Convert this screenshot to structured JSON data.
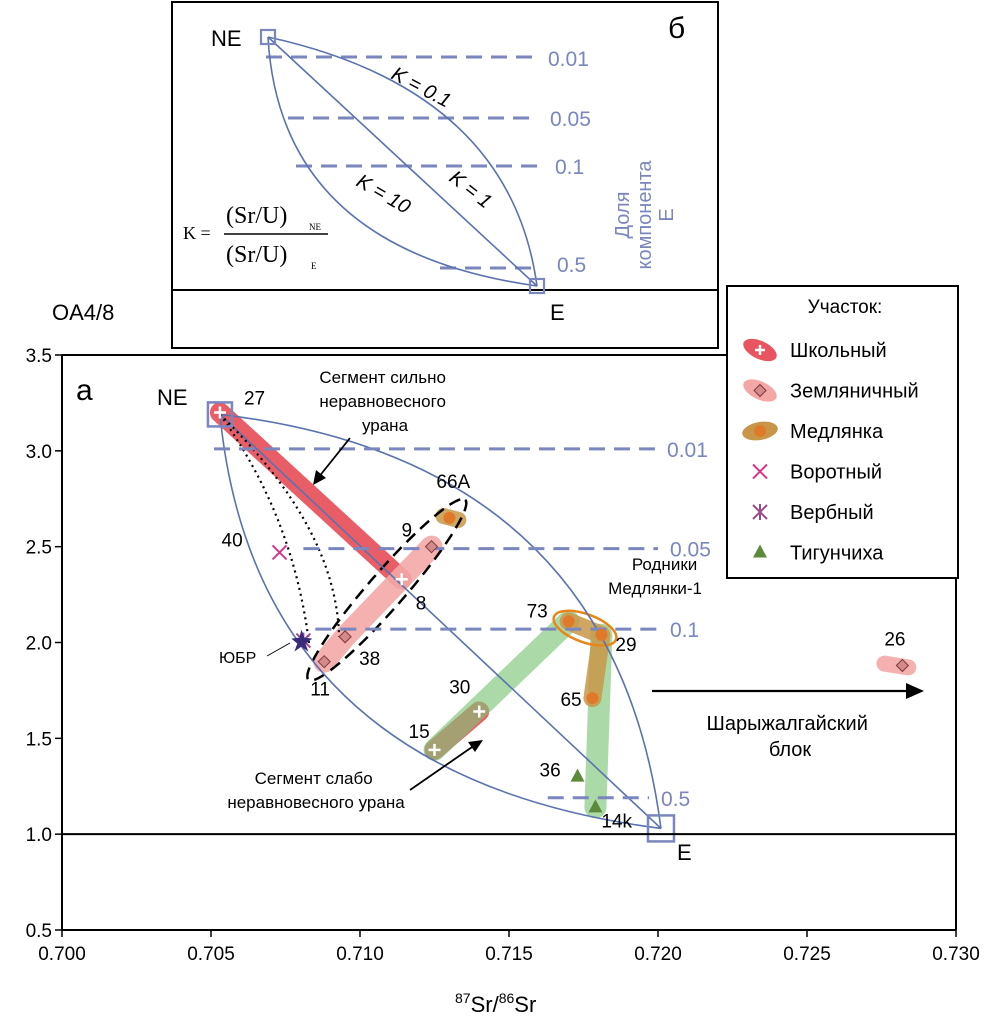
{
  "chart_data": {
    "type": "scatter",
    "panel_a": {
      "panel_label": "а",
      "y_axis_title": "OA4/8",
      "x_axis_title": {
        "sup1": "87",
        "mid": "Sr/",
        "sup2": "86",
        "end": "Sr"
      },
      "xlim": [
        0.7,
        0.73
      ],
      "ylim": [
        0.5,
        3.5
      ],
      "x_ticks": [
        "0.700",
        "0.705",
        "0.710",
        "0.715",
        "0.720",
        "0.725",
        "0.730"
      ],
      "y_ticks": [
        "0.5",
        "1.0",
        "1.5",
        "2.0",
        "2.5",
        "3.0",
        "3.5"
      ],
      "endmembers": {
        "NE": {
          "label": "NE",
          "x": 0.7053,
          "y": 3.19
        },
        "E": {
          "label": "E",
          "x": 0.7201,
          "y": 1.03
        }
      },
      "fraction_lines": [
        {
          "label": "0.01",
          "y": 3.01,
          "x0": 0.7051,
          "x1": 0.7199
        },
        {
          "label": "0.05",
          "y": 2.49,
          "x0": 0.7081,
          "x1": 0.72
        },
        {
          "label": "0.1",
          "y": 2.07,
          "x0": 0.7085,
          "x1": 0.72
        },
        {
          "label": "0.5",
          "y": 1.19,
          "x0": 0.7163,
          "x1": 0.7197
        }
      ],
      "legend": {
        "title": "Участок:",
        "items": [
          {
            "name": "Школьный",
            "color": "#e8545f"
          },
          {
            "name": "Земляничный",
            "color": "#f4a7a7"
          },
          {
            "name": "Медлянка",
            "color": "#c89648"
          },
          {
            "name": "Воротный",
            "color": "#d8358a"
          },
          {
            "name": "Вербный",
            "color": "#9b4a8e"
          },
          {
            "name": "Тигунчиха",
            "color": "#5d8a3a"
          }
        ]
      },
      "points": [
        {
          "label": "27",
          "group": "Школьный",
          "x": 0.7053,
          "y": 3.2
        },
        {
          "label": "8",
          "group": "Школьный",
          "x": 0.7114,
          "y": 2.33
        },
        {
          "label": "30",
          "group": "Школьный",
          "x": 0.714,
          "y": 1.64
        },
        {
          "label": "15",
          "group": "Школьный",
          "x": 0.7125,
          "y": 1.44
        },
        {
          "label": "9",
          "group": "Земляничный",
          "x": 0.7124,
          "y": 2.5
        },
        {
          "label": "11",
          "group": "Земляничный",
          "x": 0.7088,
          "y": 1.9
        },
        {
          "label": "38",
          "group": "Земляничный",
          "x": 0.7095,
          "y": 2.03
        },
        {
          "label": "26",
          "group": "Земляничный",
          "x": 0.7282,
          "y": 1.88
        },
        {
          "label": "66A",
          "group": "Медлянка",
          "x": 0.713,
          "y": 2.65
        },
        {
          "label": "73",
          "group": "Медлянка",
          "x": 0.717,
          "y": 2.11
        },
        {
          "label": "29",
          "group": "Медлянка",
          "x": 0.7181,
          "y": 2.04
        },
        {
          "label": "65",
          "group": "Медлянка",
          "x": 0.7178,
          "y": 1.71
        },
        {
          "label": "40",
          "group": "Воротный",
          "x": 0.7073,
          "y": 2.47
        },
        {
          "label": "",
          "group": "Вербный",
          "x": 0.7081,
          "y": 2.01
        },
        {
          "label": "36",
          "group": "Тигунчиха",
          "x": 0.7173,
          "y": 1.3
        },
        {
          "label": "14k",
          "group": "Тигунчиха",
          "x": 0.7179,
          "y": 1.14
        }
      ],
      "annotations": {
        "strong_segment": [
          "Сегмент сильно",
          "неравновесного",
          "урана"
        ],
        "weak_segment": [
          "Сегмент слабо",
          "неравновесного урана"
        ],
        "springs": [
          "Родники",
          "Медлянки-1"
        ],
        "block": [
          "Шарыжалгайский",
          "блок"
        ],
        "yubr": "ЮБР"
      }
    },
    "panel_b": {
      "panel_label": "б",
      "NE_label": "NE",
      "E_label": "E",
      "curve_labels": [
        "K = 0.1",
        "K = 1",
        "K = 10"
      ],
      "fractions": [
        "0.01",
        "0.05",
        "0.1",
        "0.5"
      ],
      "side_title": [
        "Доля",
        "компонента",
        "E"
      ],
      "formula": {
        "lhs": "K =",
        "num": "(Sr/U)",
        "num_sub": "NE",
        "den": "(Sr/U)",
        "den_sub": "E"
      }
    }
  }
}
